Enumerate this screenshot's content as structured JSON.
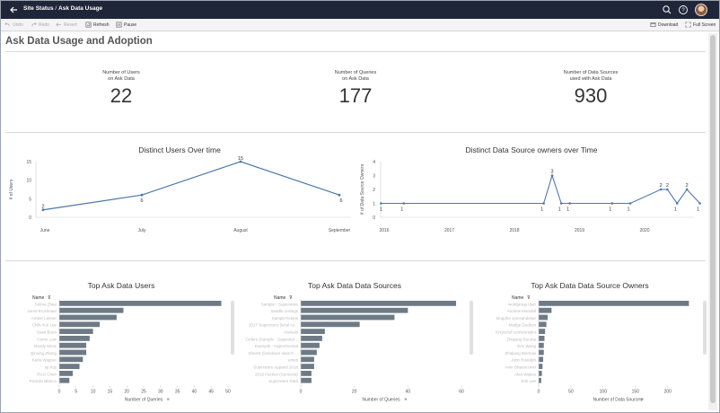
{
  "topbar": {
    "site": "Site Status",
    "separator": "/",
    "page": "Ask Data Usage"
  },
  "toolbar": {
    "undo": "Undo",
    "redo": "Redo",
    "revert": "Revert",
    "refresh": "Refresh",
    "pause": "Pause",
    "download": "Download",
    "fullscreen": "Full Screen"
  },
  "page_title": "Ask Data Usage and Adoption",
  "kpis": [
    {
      "label1": "Number of Users",
      "label2": "on Ask Data",
      "value": "22"
    },
    {
      "label1": "Number of Queries",
      "label2": "on Ask Data",
      "value": "177"
    },
    {
      "label1": "Number of Data Sources",
      "label2": "used with Ask Data",
      "value": "930"
    }
  ],
  "chart_data": [
    {
      "type": "line",
      "title": "Distinct Users Over time",
      "ylabel": "# of Users",
      "categories": [
        "June",
        "July",
        "August",
        "September"
      ],
      "values": [
        2,
        6,
        15,
        6
      ],
      "yticks": [
        0,
        5,
        10,
        15
      ],
      "ylim": [
        0,
        15
      ],
      "color": "#4e79a7"
    },
    {
      "type": "line",
      "title": "Distinct Data Source owners over Time",
      "ylabel": "# of Data Source Owners",
      "xlabels": [
        "2016",
        "2017",
        "2018",
        "2019",
        "2020"
      ],
      "x": [
        2015.95,
        2016.3,
        2018.45,
        2018.58,
        2018.72,
        2018.85,
        2019.5,
        2019.78,
        2020.25,
        2020.35,
        2020.5,
        2020.65,
        2020.85
      ],
      "values": [
        1,
        1,
        1,
        3,
        1,
        1,
        1,
        1,
        2,
        2,
        1,
        2,
        1
      ],
      "yticks": [
        0,
        1,
        2,
        3,
        4
      ],
      "ylim": [
        0,
        4
      ],
      "color": "#4e79a7"
    },
    {
      "type": "bar",
      "title": "Top Ask Data Users",
      "header": "Name",
      "xlabel": "Number of Queries",
      "xticks": [
        0,
        5,
        10,
        15,
        20,
        25,
        30,
        35,
        40,
        45,
        50
      ],
      "xlim": [
        0,
        50
      ],
      "categories": [
        "Selma Zhao",
        "Jared Brockman",
        "Amber Leitner",
        "Chih-Yun Lee",
        "Sean Boon",
        "Carrie Law",
        "Randy Moss",
        "Qinxing Zheng",
        "Karla Wagner",
        "sp.hqs",
        "Ricci Chen",
        "Ricardo Blanco"
      ],
      "values": [
        48,
        19,
        17,
        12,
        10,
        9,
        8,
        8,
        7,
        6,
        4,
        3
      ],
      "color": "#6e7a85"
    },
    {
      "type": "bar",
      "title": "Top Ask Data Data Sources",
      "header": "Name",
      "xlabel": "Number of Queries",
      "xticks": [
        0,
        20,
        40,
        60
      ],
      "xlim": [
        0,
        60
      ],
      "categories": [
        "Sample - Superstore",
        "Seattle Listings",
        "SampleTickets",
        "2017 Superstore (local co...",
        "Animals",
        "Orders (Sample - Superstor...",
        "Example - Hyper/mental",
        "Sheet1 (lockdown search ...",
        "ames",
        "Superstore Apparel 2018",
        "2016 Faction (Sensoria)",
        "Superstore Data"
      ],
      "values": [
        58,
        40,
        35,
        22,
        9,
        8,
        7,
        6,
        5,
        5,
        4,
        4
      ],
      "color": "#6e7a85"
    },
    {
      "type": "bar",
      "title": "Top Ask Data Data Source Owners",
      "header": "Name",
      "xlabel": "Number of Data Sources",
      "xticks": [
        0,
        50,
        100,
        150,
        200
      ],
      "xlim": [
        0,
        245
      ],
      "categories": [
        "workgroup.user",
        "Andrew Mandell",
        "Mugdha Jamsandekar",
        "Madge Dodson",
        "Krzysztof Lemiesnejko",
        "Zhiqiang Bouma",
        "Eric Wang",
        "Zhiqiang Biersaw",
        "John Rudolph",
        "Amir Bhaurezmin",
        "Alan Wakes",
        "Erik Lee"
      ],
      "values": [
        233,
        20,
        14,
        12,
        10,
        9,
        8,
        8,
        7,
        6,
        5,
        4
      ],
      "color": "#6e7a85"
    }
  ]
}
